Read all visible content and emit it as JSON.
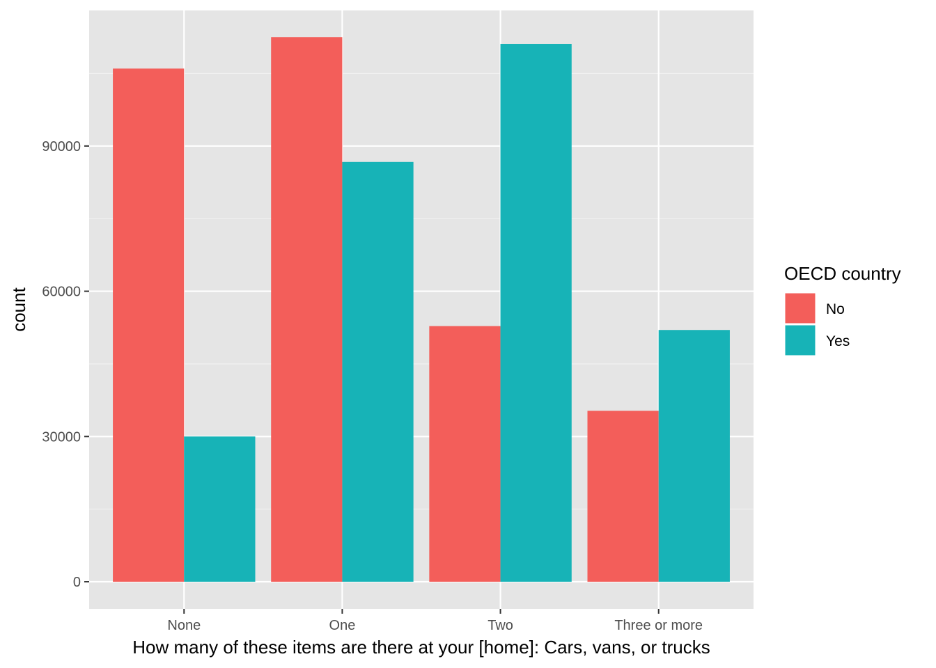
{
  "chart_data": {
    "type": "bar",
    "categories": [
      "None",
      "One",
      "Two",
      "Three or more"
    ],
    "series": [
      {
        "name": "No",
        "color": "#F35E5A",
        "values": [
          106000,
          112500,
          52800,
          35300
        ]
      },
      {
        "name": "Yes",
        "color": "#17B3B7",
        "values": [
          30000,
          86700,
          111100,
          52000
        ]
      }
    ],
    "xlabel": "How many of these items are there at your [home]: Cars, vans, or trucks",
    "ylabel": "count",
    "ylim": [
      -5600,
      118000
    ],
    "yticks": [
      0,
      30000,
      60000,
      90000
    ],
    "ytick_labels": [
      "0",
      "30000",
      "60000",
      "90000"
    ],
    "legend": {
      "title": "OECD country",
      "position": "right"
    },
    "grid": true,
    "panel_background": "#E5E5E5"
  }
}
